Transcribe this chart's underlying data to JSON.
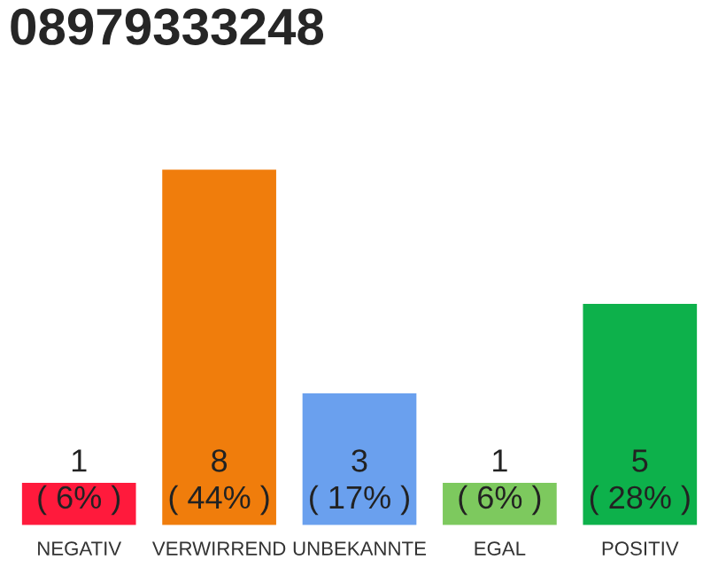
{
  "chart_data": {
    "type": "bar",
    "title": "08979333248",
    "categories": [
      "NEGATIV",
      "VERWIRREND",
      "UNBEKANNTE",
      "EGAL",
      "POSITIV"
    ],
    "values": [
      1,
      8,
      3,
      1,
      5
    ],
    "colors": [
      "#ff1a3c",
      "#f07d0c",
      "#6aa0ee",
      "#7dc95e",
      "#0db14b"
    ],
    "grid": false,
    "legend": false,
    "value_labels": [
      "1\n( 6% )",
      "8\n( 44% )",
      "3\n( 17% )",
      "1\n( 6% )",
      "5\n( 28% )"
    ]
  }
}
